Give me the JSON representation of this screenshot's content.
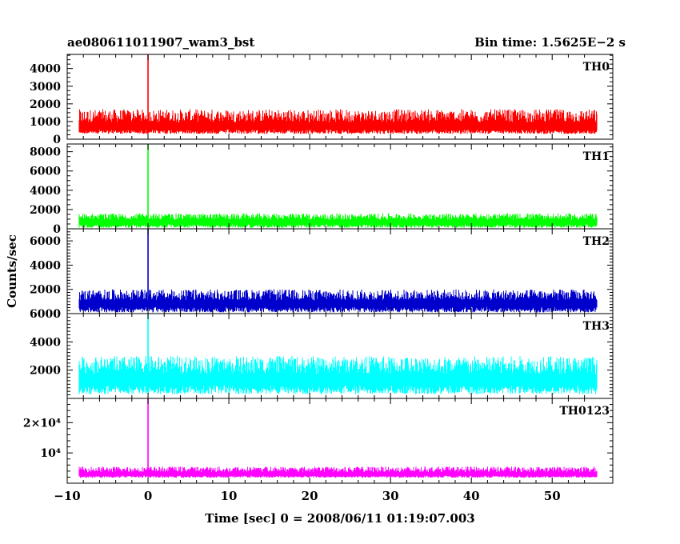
{
  "title": "ae080611011907_wam3_bst",
  "bin_time_label": "Bin time: 1.5625E−2 s",
  "xlabel": "Time [sec] 0 = 2008/06/11 01:19:07.003",
  "ylabel": "Counts/sec",
  "chart_data": {
    "type": "line",
    "title": "ae080611011907_wam3_bst",
    "xlabel": "Time [sec] 0 = 2008/06/11 01:19:07.003",
    "ylabel": "Counts/sec",
    "xlim": [
      -10,
      57.5
    ],
    "x_ticks": [
      -10,
      0,
      10,
      20,
      30,
      40,
      50
    ],
    "x_tick_labels": [
      "−10",
      "0",
      "10",
      "20",
      "30",
      "40",
      "50"
    ],
    "data_x_range": [
      -8.5,
      55.5
    ],
    "burst_time": 0.0,
    "grid": false,
    "legend": "none",
    "panels": [
      {
        "name": "TH0",
        "color": "#ff0000",
        "ylim": [
          0,
          4800
        ],
        "y_ticks": [
          0,
          1000,
          2000,
          3000,
          4000
        ],
        "y_tick_labels": [
          "0",
          "1000",
          "2000",
          "3000",
          "4000"
        ],
        "baseline": 700,
        "noise_low": 300,
        "noise_high": 1700,
        "peak": 4800
      },
      {
        "name": "TH1",
        "color": "#00ff00",
        "ylim": [
          0,
          8800
        ],
        "y_ticks": [
          0,
          2000,
          4000,
          6000,
          8000
        ],
        "y_tick_labels": [
          "0",
          "2000",
          "4000",
          "6000",
          "8000"
        ],
        "baseline": 700,
        "noise_low": 100,
        "noise_high": 1600,
        "peak": 8800
      },
      {
        "name": "TH2",
        "color": "#0000cc",
        "ylim": [
          0,
          7000
        ],
        "y_ticks": [
          0,
          2000,
          4000,
          6000
        ],
        "y_tick_labels": [
          "0",
          "2000",
          "4000",
          "6000"
        ],
        "baseline": 800,
        "noise_low": 100,
        "noise_high": 2000,
        "peak": 7000
      },
      {
        "name": "TH3",
        "color": "#00ffff",
        "ylim": [
          0,
          6000
        ],
        "y_ticks": [
          2000,
          4000,
          6000
        ],
        "y_tick_labels": [
          "2000",
          "4000",
          "6000"
        ],
        "baseline": 1300,
        "noise_low": 300,
        "noise_high": 3000,
        "peak": 6000
      },
      {
        "name": "TH0123",
        "color": "#ff00ff",
        "ylim": [
          0,
          28000
        ],
        "y_ticks": [
          10000,
          20000
        ],
        "y_tick_labels": [
          "10⁴",
          "2×10⁴"
        ],
        "baseline": 3000,
        "noise_low": 1800,
        "noise_high": 5500,
        "peak": 28000
      }
    ]
  }
}
